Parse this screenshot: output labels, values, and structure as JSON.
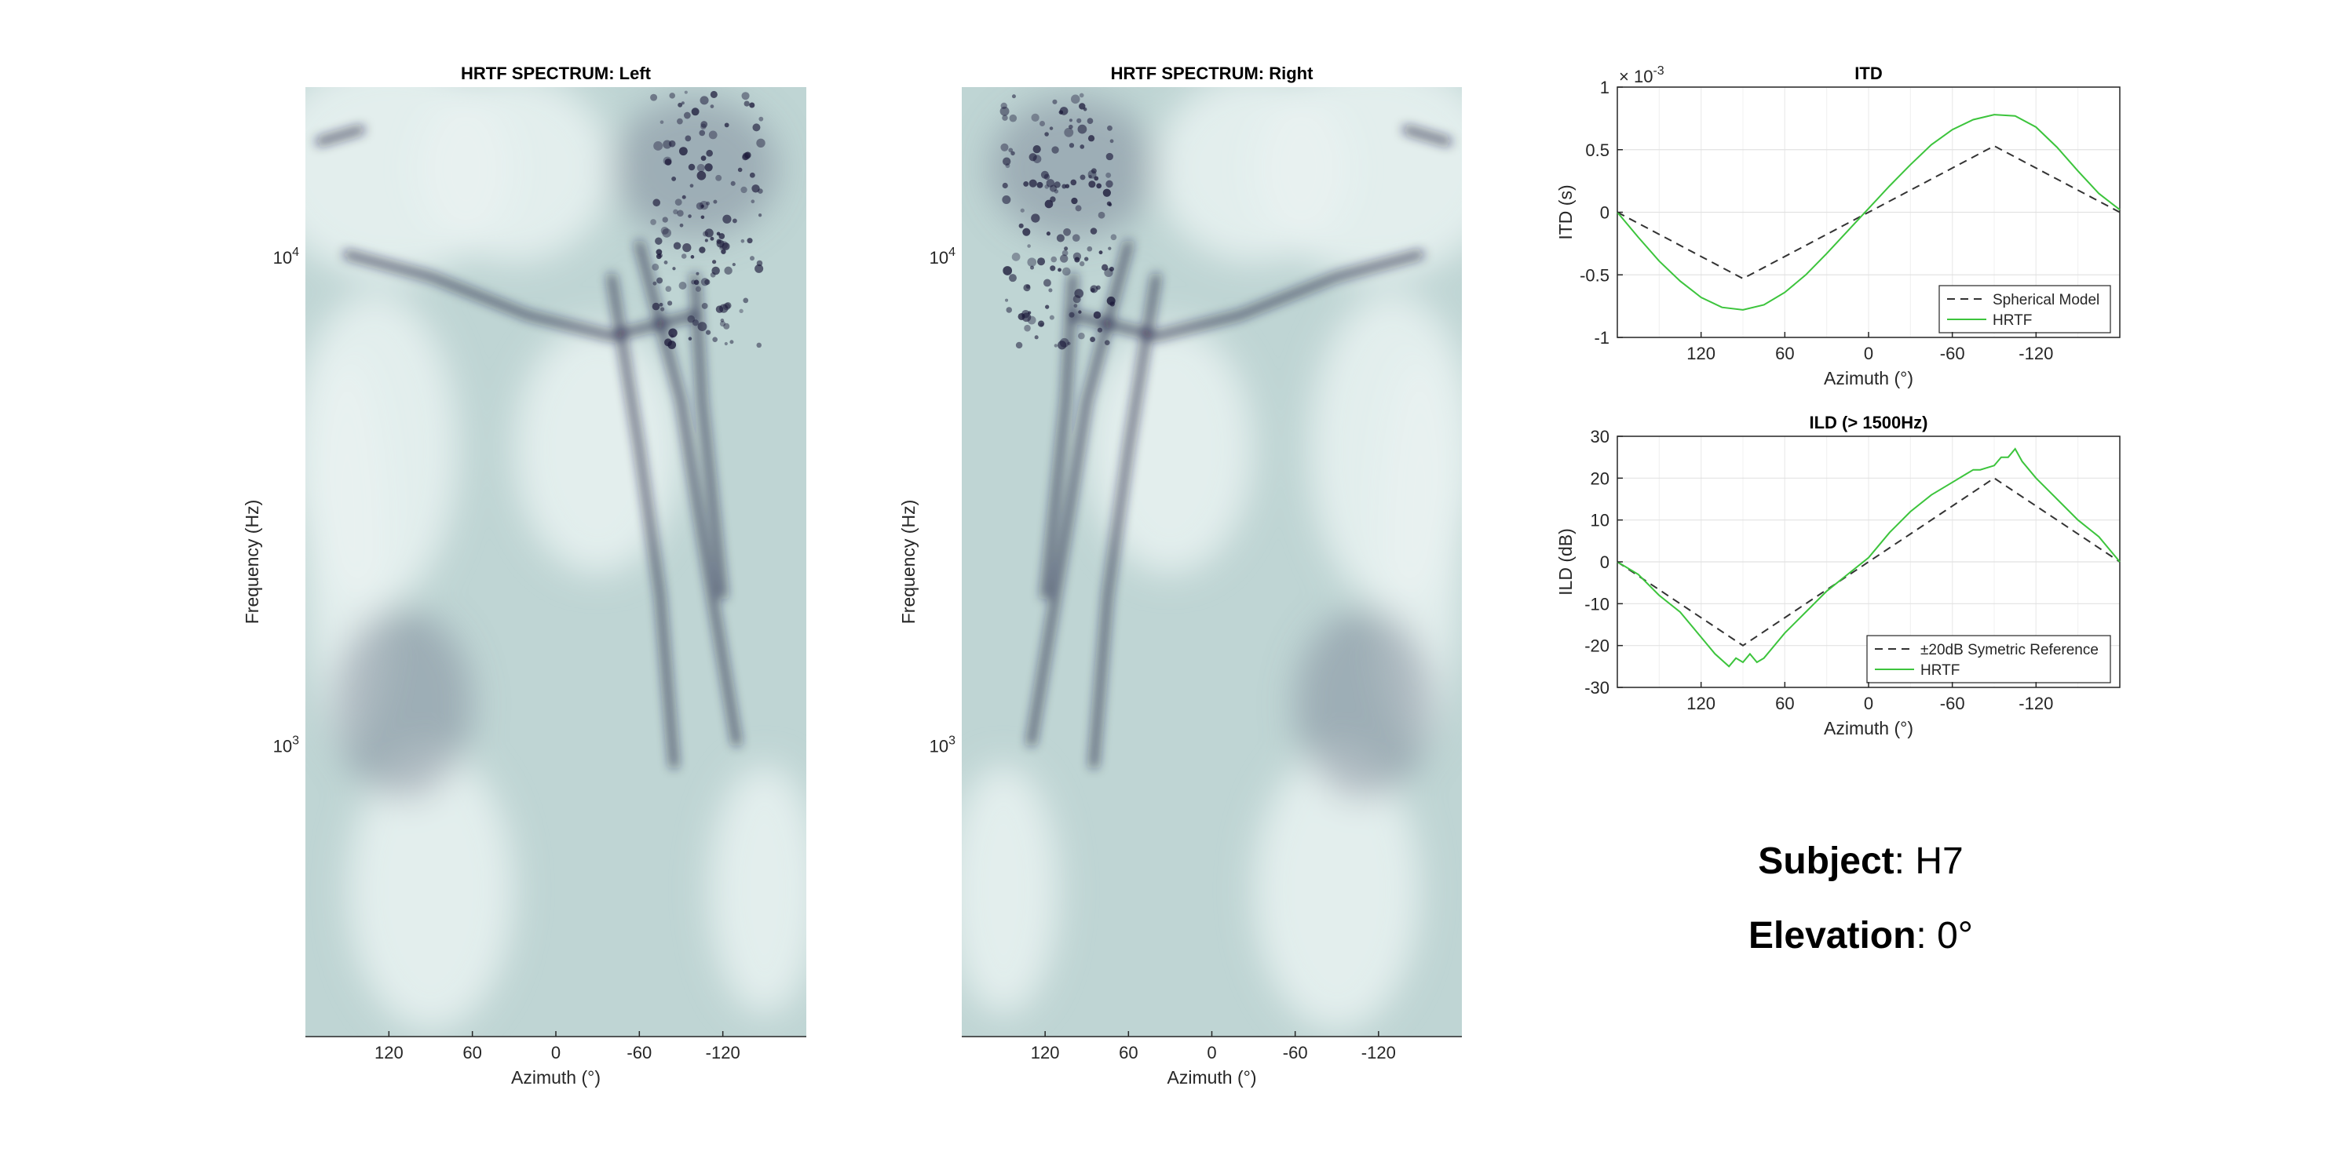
{
  "chart_data": [
    {
      "type": "heatmap",
      "title": "HRTF SPECTRUM: Left",
      "xlabel": "Azimuth (°)",
      "ylabel": "Frequency (Hz)",
      "xlim": [
        180,
        -180
      ],
      "xticks": [
        120,
        60,
        0,
        -60,
        -120
      ],
      "yscale": "log",
      "ylim": [
        250,
        22000
      ],
      "yticks": [
        1000,
        10000
      ],
      "ytick_labels": [
        {
          "base": "10",
          "exp": "3"
        },
        {
          "base": "10",
          "exp": "4"
        }
      ],
      "colormap": [
        "#1c1a3a",
        "#7c8898",
        "#bfd5d4",
        "#e9f2f1"
      ],
      "notch_curves": [
        {
          "points": [
            [
              -60,
              10500
            ],
            [
              -90,
              5000
            ],
            [
              -110,
              2200
            ],
            [
              -130,
              1000
            ]
          ]
        },
        {
          "points": [
            [
              -40,
              9000
            ],
            [
              -60,
              4000
            ],
            [
              -75,
              2000
            ],
            [
              -85,
              900
            ]
          ]
        },
        {
          "points": [
            [
              -100,
              9000
            ],
            [
              -105,
              5000
            ],
            [
              -120,
              2000
            ]
          ]
        },
        {
          "points": [
            [
              150,
              10000
            ],
            [
              90,
              9000
            ],
            [
              20,
              7500
            ],
            [
              -40,
              6800
            ],
            [
              -100,
              7500
            ]
          ]
        },
        {
          "points": [
            [
              170,
              17000
            ],
            [
              140,
              18000
            ]
          ]
        }
      ]
    },
    {
      "type": "heatmap",
      "title": "HRTF SPECTRUM: Right",
      "xlabel": "Azimuth (°)",
      "ylabel": "Frequency (Hz)",
      "xlim": [
        180,
        -180
      ],
      "xticks": [
        120,
        60,
        0,
        -60,
        -120
      ],
      "yscale": "log",
      "ylim": [
        250,
        22000
      ],
      "yticks": [
        1000,
        10000
      ],
      "ytick_labels": [
        {
          "base": "10",
          "exp": "3"
        },
        {
          "base": "10",
          "exp": "4"
        }
      ],
      "colormap": [
        "#1c1a3a",
        "#7c8898",
        "#bfd5d4",
        "#e9f2f1"
      ],
      "notch_curves": [
        {
          "points": [
            [
              60,
              10500
            ],
            [
              90,
              5000
            ],
            [
              110,
              2200
            ],
            [
              130,
              1000
            ]
          ]
        },
        {
          "points": [
            [
              40,
              9000
            ],
            [
              60,
              4000
            ],
            [
              75,
              2000
            ],
            [
              85,
              900
            ]
          ]
        },
        {
          "points": [
            [
              100,
              9000
            ],
            [
              105,
              5000
            ],
            [
              120,
              2000
            ]
          ]
        },
        {
          "points": [
            [
              -150,
              10000
            ],
            [
              -90,
              9000
            ],
            [
              -20,
              7500
            ],
            [
              40,
              6800
            ],
            [
              100,
              7500
            ]
          ]
        },
        {
          "points": [
            [
              -170,
              17000
            ],
            [
              -140,
              18000
            ]
          ]
        }
      ]
    },
    {
      "type": "line",
      "title": "ITD",
      "xlabel": "Azimuth (°)",
      "ylabel": "ITD (s)",
      "xlim": [
        180,
        -180
      ],
      "ylim": [
        -1,
        1
      ],
      "xticks": [
        120,
        60,
        0,
        -60,
        -120
      ],
      "yticks": [
        -1,
        -0.5,
        0,
        0.5,
        1
      ],
      "ytick_labels": [
        "-1",
        "-0.5",
        "0",
        "0.5",
        "1"
      ],
      "exponent_label": {
        "base": "× 10",
        "exp": "-3"
      },
      "grid": true,
      "legend_location": "bottom-right",
      "series": [
        {
          "name": "Spherical Model",
          "color": "#333333",
          "dash": true,
          "x": [
            180,
            90,
            0,
            -90,
            -180
          ],
          "y": [
            0,
            -0.53,
            0,
            0.53,
            0
          ]
        },
        {
          "name": "HRTF",
          "color": "#3cc43c",
          "dash": false,
          "x": [
            180,
            165,
            150,
            135,
            120,
            105,
            90,
            75,
            60,
            45,
            30,
            15,
            0,
            -15,
            -30,
            -45,
            -60,
            -75,
            -90,
            -105,
            -120,
            -135,
            -150,
            -165,
            -180
          ],
          "y": [
            0,
            -0.2,
            -0.39,
            -0.55,
            -0.68,
            -0.76,
            -0.78,
            -0.74,
            -0.64,
            -0.5,
            -0.33,
            -0.15,
            0.03,
            0.21,
            0.38,
            0.54,
            0.66,
            0.74,
            0.78,
            0.77,
            0.68,
            0.52,
            0.33,
            0.15,
            0.02
          ]
        }
      ]
    },
    {
      "type": "line",
      "title": "ILD (> 1500Hz)",
      "xlabel": "Azimuth (°)",
      "ylabel": "ILD (dB)",
      "xlim": [
        180,
        -180
      ],
      "ylim": [
        -30,
        30
      ],
      "xticks": [
        120,
        60,
        0,
        -60,
        -120
      ],
      "yticks": [
        -30,
        -20,
        -10,
        0,
        10,
        20,
        30
      ],
      "ytick_labels": [
        "-30",
        "-20",
        "-10",
        "0",
        "10",
        "20",
        "30"
      ],
      "grid": true,
      "legend_location": "bottom-right",
      "series": [
        {
          "name": "±20dB Symetric Reference",
          "color": "#333333",
          "dash": true,
          "x": [
            180,
            90,
            0,
            -90,
            -180
          ],
          "y": [
            0,
            -20,
            0,
            20,
            0
          ]
        },
        {
          "name": "HRTF",
          "color": "#3cc43c",
          "dash": false,
          "x": [
            180,
            165,
            150,
            135,
            120,
            110,
            100,
            95,
            90,
            85,
            80,
            75,
            70,
            60,
            45,
            30,
            15,
            0,
            -15,
            -30,
            -45,
            -60,
            -70,
            -75,
            -80,
            -90,
            -95,
            -100,
            -105,
            -110,
            -120,
            -135,
            -150,
            -165,
            -180
          ],
          "y": [
            0,
            -3,
            -8,
            -12,
            -18,
            -22,
            -25,
            -23,
            -24,
            -22,
            -24,
            -23,
            -21,
            -17,
            -12,
            -7,
            -3,
            1,
            7,
            12,
            16,
            19,
            21,
            22,
            22,
            23,
            25,
            25,
            27,
            24,
            20,
            15,
            10,
            6,
            0
          ]
        }
      ]
    }
  ],
  "subject": {
    "label": "Subject",
    "value": ": H7"
  },
  "elevation": {
    "label": "Elevation",
    "value": ": 0°"
  }
}
